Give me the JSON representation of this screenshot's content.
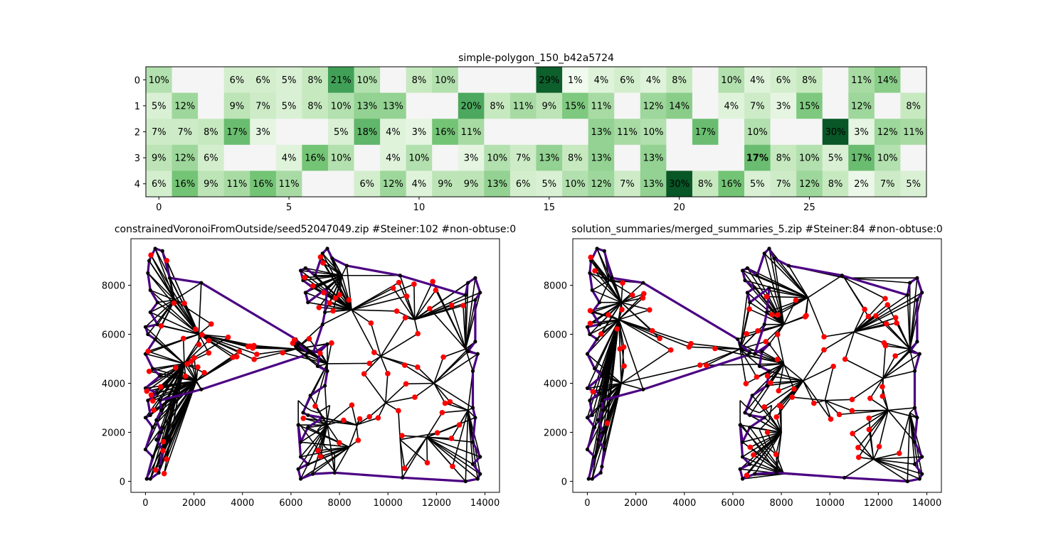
{
  "chart_data": [
    {
      "type": "heatmap",
      "title": "simple-polygon_150_b42a5724",
      "x_ticks": [
        0,
        5,
        10,
        15,
        20,
        25
      ],
      "y_ticks": [
        0,
        1,
        2,
        3,
        4
      ],
      "n_cols": 30,
      "n_rows": 5,
      "rows": [
        [
          "10%",
          "",
          "",
          "6%",
          "6%",
          "5%",
          "8%",
          "21%",
          "10%",
          "",
          "8%",
          "10%",
          "",
          "",
          "",
          "29%",
          "1%",
          "4%",
          "6%",
          "4%",
          "8%",
          "",
          "10%",
          "4%",
          "6%",
          "8%",
          "",
          "11%",
          "14%",
          ""
        ],
        [
          "5%",
          "12%",
          "",
          "9%",
          "7%",
          "5%",
          "8%",
          "10%",
          "13%",
          "13%",
          "",
          "",
          "20%",
          "8%",
          "11%",
          "9%",
          "15%",
          "11%",
          "",
          "12%",
          "14%",
          "",
          "4%",
          "7%",
          "3%",
          "15%",
          "",
          "12%",
          "",
          "8%"
        ],
        [
          "7%",
          "7%",
          "8%",
          "17%",
          "3%",
          "",
          "",
          "5%",
          "18%",
          "4%",
          "3%",
          "16%",
          "11%",
          "",
          "",
          "",
          "",
          "13%",
          "11%",
          "10%",
          "",
          "17%",
          "",
          "10%",
          "",
          "",
          "30%",
          "3%",
          "12%",
          "11%"
        ],
        [
          "9%",
          "12%",
          "6%",
          "",
          "",
          "4%",
          "16%",
          "10%",
          "",
          "4%",
          "10%",
          "",
          "3%",
          "10%",
          "7%",
          "13%",
          "8%",
          "13%",
          "",
          "13%",
          "",
          "",
          "",
          "17%",
          "8%",
          "10%",
          "5%",
          "17%",
          "10%",
          ""
        ],
        [
          "6%",
          "16%",
          "9%",
          "11%",
          "16%",
          "11%",
          "",
          "",
          "6%",
          "12%",
          "4%",
          "9%",
          "9%",
          "13%",
          "6%",
          "5%",
          "10%",
          "12%",
          "7%",
          "13%",
          "30%",
          "8%",
          "16%",
          "5%",
          "7%",
          "12%",
          "8%",
          "2%",
          "7%",
          "5%"
        ]
      ],
      "highlight": {
        "row": 3,
        "col": 23,
        "color": "#0000ff"
      },
      "colormap": [
        "#f7fcf5",
        "#c7e9c0",
        "#74c476",
        "#238b45",
        "#00441b"
      ],
      "empty_color": "#f5f5f5"
    },
    {
      "type": "scatter",
      "title": "constrainedVoronoiFromOutside/seed52047049.zip #Steiner:102 #non-obtuse:0",
      "x_ticks": [
        0,
        2000,
        4000,
        6000,
        8000,
        10000,
        12000,
        14000
      ],
      "y_ticks": [
        0,
        2000,
        4000,
        6000,
        8000
      ],
      "xlim": [
        -600,
        14600
      ],
      "ylim": [
        -450,
        9900
      ],
      "boundary_color": "#4b0082",
      "edge_color": "#000000",
      "steiner_color": "#ff0000",
      "vertex_color": "#000000"
    },
    {
      "type": "scatter",
      "title": "solution_summaries/merged_summaries_5.zip #Steiner:84 #non-obtuse:0",
      "x_ticks": [
        0,
        2000,
        4000,
        6000,
        8000,
        10000,
        12000,
        14000
      ],
      "y_ticks": [
        0,
        2000,
        4000,
        6000,
        8000
      ],
      "xlim": [
        -600,
        14600
      ],
      "ylim": [
        -450,
        9900
      ],
      "boundary_color": "#4b0082",
      "edge_color": "#000000",
      "steiner_color": "#ff0000",
      "vertex_color": "#000000"
    }
  ]
}
